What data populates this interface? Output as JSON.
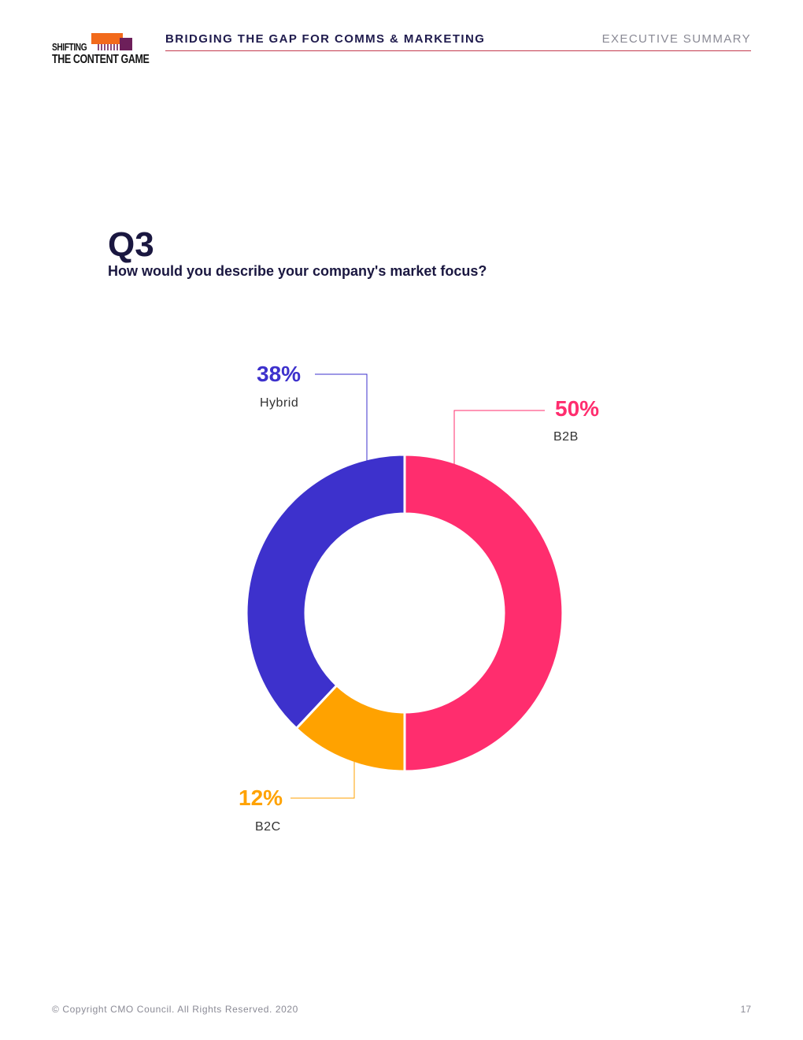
{
  "logo": {
    "line1": "SHIFTING",
    "line2": "THE CONTENT GAME"
  },
  "header": {
    "title": "BRIDGING THE GAP FOR COMMS & MARKETING",
    "section": "EXECUTIVE SUMMARY"
  },
  "question": {
    "number": "Q3",
    "text": "How would you describe your company's market focus?"
  },
  "chart_data": {
    "type": "pie",
    "slices": [
      {
        "label": "B2B",
        "value": 50,
        "display": "50%",
        "color": "#ff2d6e"
      },
      {
        "label": "B2C",
        "value": 12,
        "display": "12%",
        "color": "#ffa200"
      },
      {
        "label": "Hybrid",
        "value": 38,
        "display": "38%",
        "color": "#3d31cc"
      }
    ]
  },
  "footer": {
    "copyright": "© Copyright CMO Council. All Rights Reserved. 2020",
    "page": "17"
  }
}
